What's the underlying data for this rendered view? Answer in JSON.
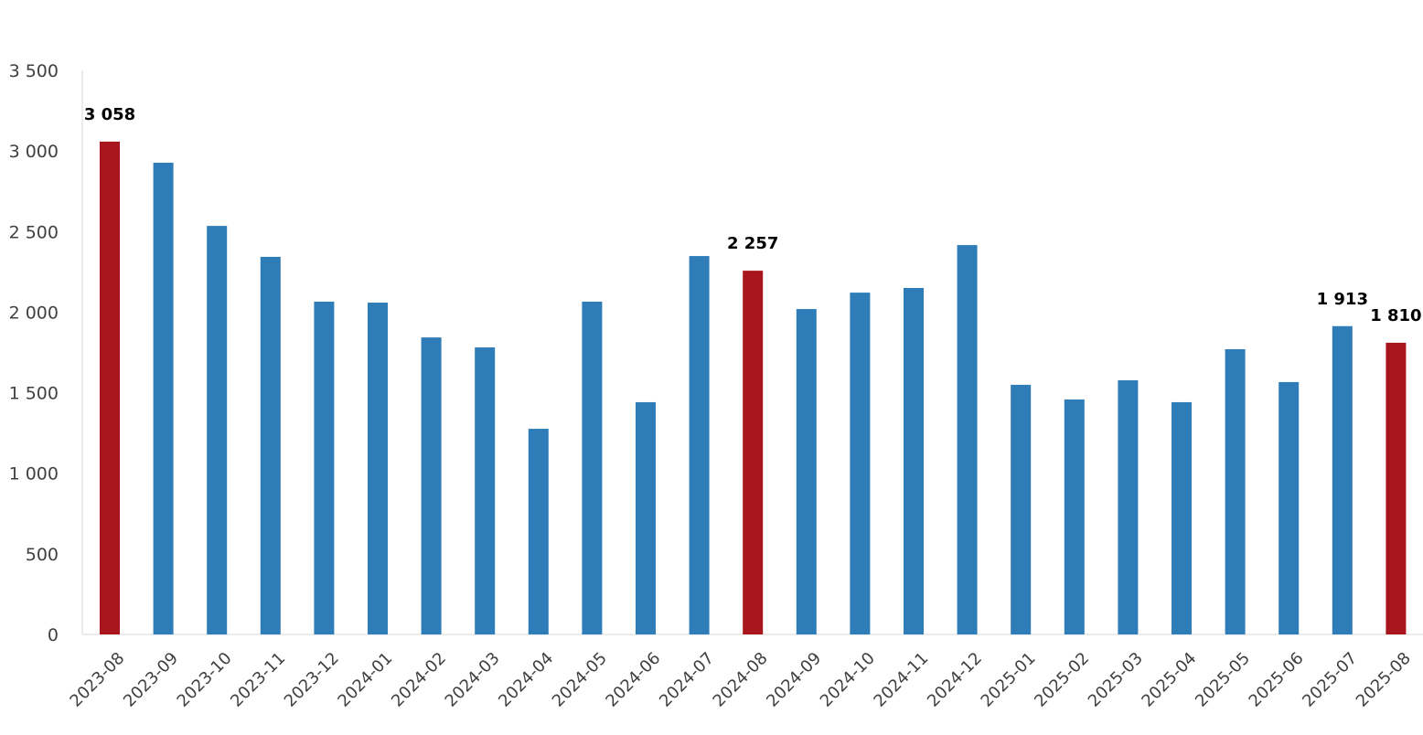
{
  "chart_data": {
    "type": "bar",
    "title": "",
    "xlabel": "",
    "ylabel": "",
    "ylim": [
      0,
      3500
    ],
    "yticks": [
      0,
      500,
      1000,
      1500,
      2000,
      2500,
      3000,
      3500
    ],
    "ytick_labels": [
      "0",
      "500",
      "1 000",
      "1 500",
      "2 000",
      "2 500",
      "3 000",
      "3 500"
    ],
    "grid": false,
    "legend": "none",
    "colors": {
      "default": "#2f7db8",
      "highlight": "#a8151c"
    },
    "categories": [
      "2023-08",
      "2023-09",
      "2023-10",
      "2023-11",
      "2023-12",
      "2024-01",
      "2024-02",
      "2024-03",
      "2024-04",
      "2024-05",
      "2024-06",
      "2024-07",
      "2024-08",
      "2024-09",
      "2024-10",
      "2024-11",
      "2024-12",
      "2025-01",
      "2025-02",
      "2025-03",
      "2025-04",
      "2025-05",
      "2025-06",
      "2025-07",
      "2025-08"
    ],
    "values": [
      3058,
      2927,
      2535,
      2343,
      2065,
      2059,
      1843,
      1781,
      1276,
      2065,
      1441,
      2348,
      2257,
      2019,
      2121,
      2150,
      2416,
      1549,
      1458,
      1577,
      1441,
      1770,
      1566,
      1913,
      1810
    ],
    "highlighted": [
      "2023-08",
      "2024-08",
      "2025-08"
    ],
    "data_labels": [
      {
        "category": "2023-08",
        "text": "3 058"
      },
      {
        "category": "2024-08",
        "text": "2 257"
      },
      {
        "category": "2025-07",
        "text": "1 913"
      },
      {
        "category": "2025-08",
        "text": "1 810"
      }
    ]
  }
}
